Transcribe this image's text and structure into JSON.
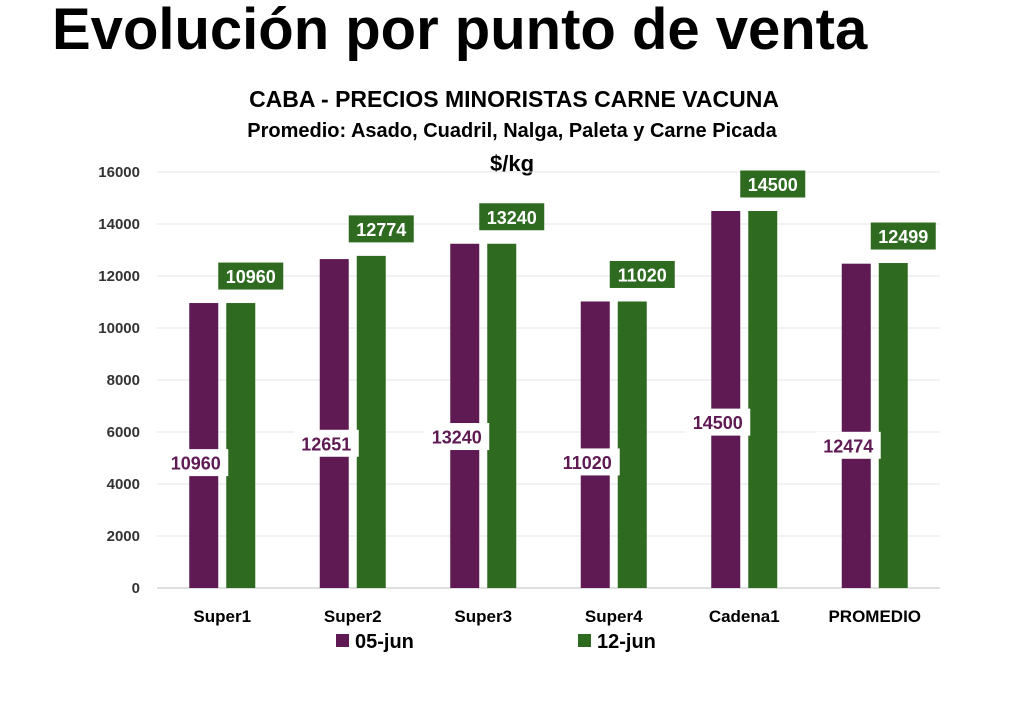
{
  "page": {
    "title": "Evolución por punto de venta"
  },
  "chart_data": {
    "type": "bar",
    "title": "CABA -  PRECIOS MINORISTAS CARNE VACUNA",
    "subtitle": "Promedio: Asado, Cuadril, Nalga, Paleta y Carne Picada",
    "unit_label": "$/kg",
    "xlabel": "",
    "ylabel": "",
    "ylim": [
      0,
      16000
    ],
    "yticks": [
      0,
      2000,
      4000,
      6000,
      8000,
      10000,
      12000,
      14000,
      16000
    ],
    "grid": true,
    "legend_position": "bottom",
    "categories": [
      "Super1",
      "Super2",
      "Super3",
      "Super4",
      "Cadena1",
      "PROMEDIO"
    ],
    "series": [
      {
        "name": "05-jun",
        "color": "#5f1a54",
        "values": [
          10960,
          12651,
          13240,
          11020,
          14500,
          12474
        ]
      },
      {
        "name": "12-jun",
        "color": "#2e6b20",
        "values": [
          10960,
          12774,
          13240,
          11020,
          14500,
          12499
        ]
      }
    ]
  }
}
